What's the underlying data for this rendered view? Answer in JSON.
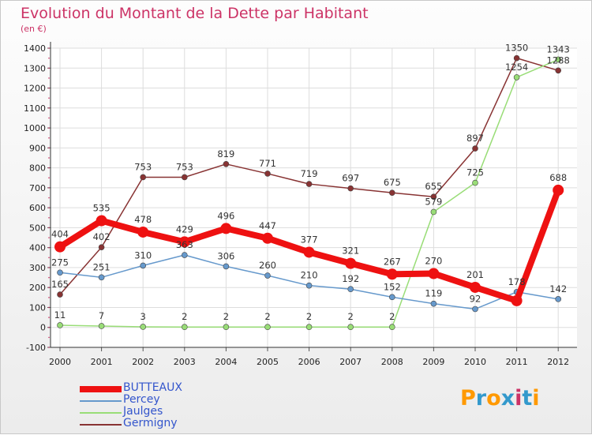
{
  "title": "Evolution du Montant de la Dette par Habitant",
  "unit": "(en €)",
  "logo": "Proxiti",
  "chart_data": {
    "type": "line",
    "x": [
      "2000",
      "2001",
      "2002",
      "2003",
      "2004",
      "2005",
      "2006",
      "2007",
      "2008",
      "2009",
      "2010",
      "2011",
      "2012"
    ],
    "ylim": [
      -100,
      1400
    ],
    "yticks": [
      -100,
      0,
      100,
      200,
      300,
      400,
      500,
      600,
      700,
      800,
      900,
      1000,
      1100,
      1200,
      1300,
      1400
    ],
    "grid": true,
    "legend_position": "bottom-left",
    "series": [
      {
        "name": "BUTTEAUX",
        "color": "#ee1111",
        "width": 8,
        "marker": 7,
        "values": [
          404,
          535,
          478,
          429,
          496,
          447,
          377,
          321,
          267,
          270,
          201,
          134,
          688
        ],
        "labels": [
          "404",
          "535",
          "478",
          "429",
          "496",
          "447",
          "377",
          "321",
          "267",
          "270",
          "201",
          "",
          "688"
        ]
      },
      {
        "name": "Percey",
        "color": "#6699cc",
        "width": 1.5,
        "marker": 3.5,
        "values": [
          275,
          251,
          310,
          363,
          306,
          260,
          210,
          192,
          152,
          119,
          92,
          178,
          142
        ],
        "labels": [
          "275",
          "251",
          "310",
          "363",
          "306",
          "260",
          "210",
          "192",
          "152",
          "119",
          "92",
          "178",
          "142"
        ]
      },
      {
        "name": "Jaulges",
        "color": "#99dd77",
        "width": 1.5,
        "marker": 3.5,
        "values": [
          11,
          7,
          3,
          2,
          2,
          2,
          2,
          2,
          2,
          579,
          725,
          1254,
          1343
        ],
        "labels": [
          "11",
          "7",
          "3",
          "2",
          "2",
          "2",
          "2",
          "2",
          "2",
          "579",
          "725",
          "1254",
          "1343"
        ]
      },
      {
        "name": "Germigny",
        "color": "#883333",
        "width": 1.5,
        "marker": 3.5,
        "values": [
          165,
          402,
          753,
          753,
          819,
          771,
          719,
          697,
          675,
          655,
          897,
          1350,
          1288
        ],
        "labels": [
          "165",
          "402",
          "753",
          "753",
          "819",
          "771",
          "719",
          "697",
          "675",
          "655",
          "897",
          "1350",
          "1288"
        ]
      }
    ]
  }
}
